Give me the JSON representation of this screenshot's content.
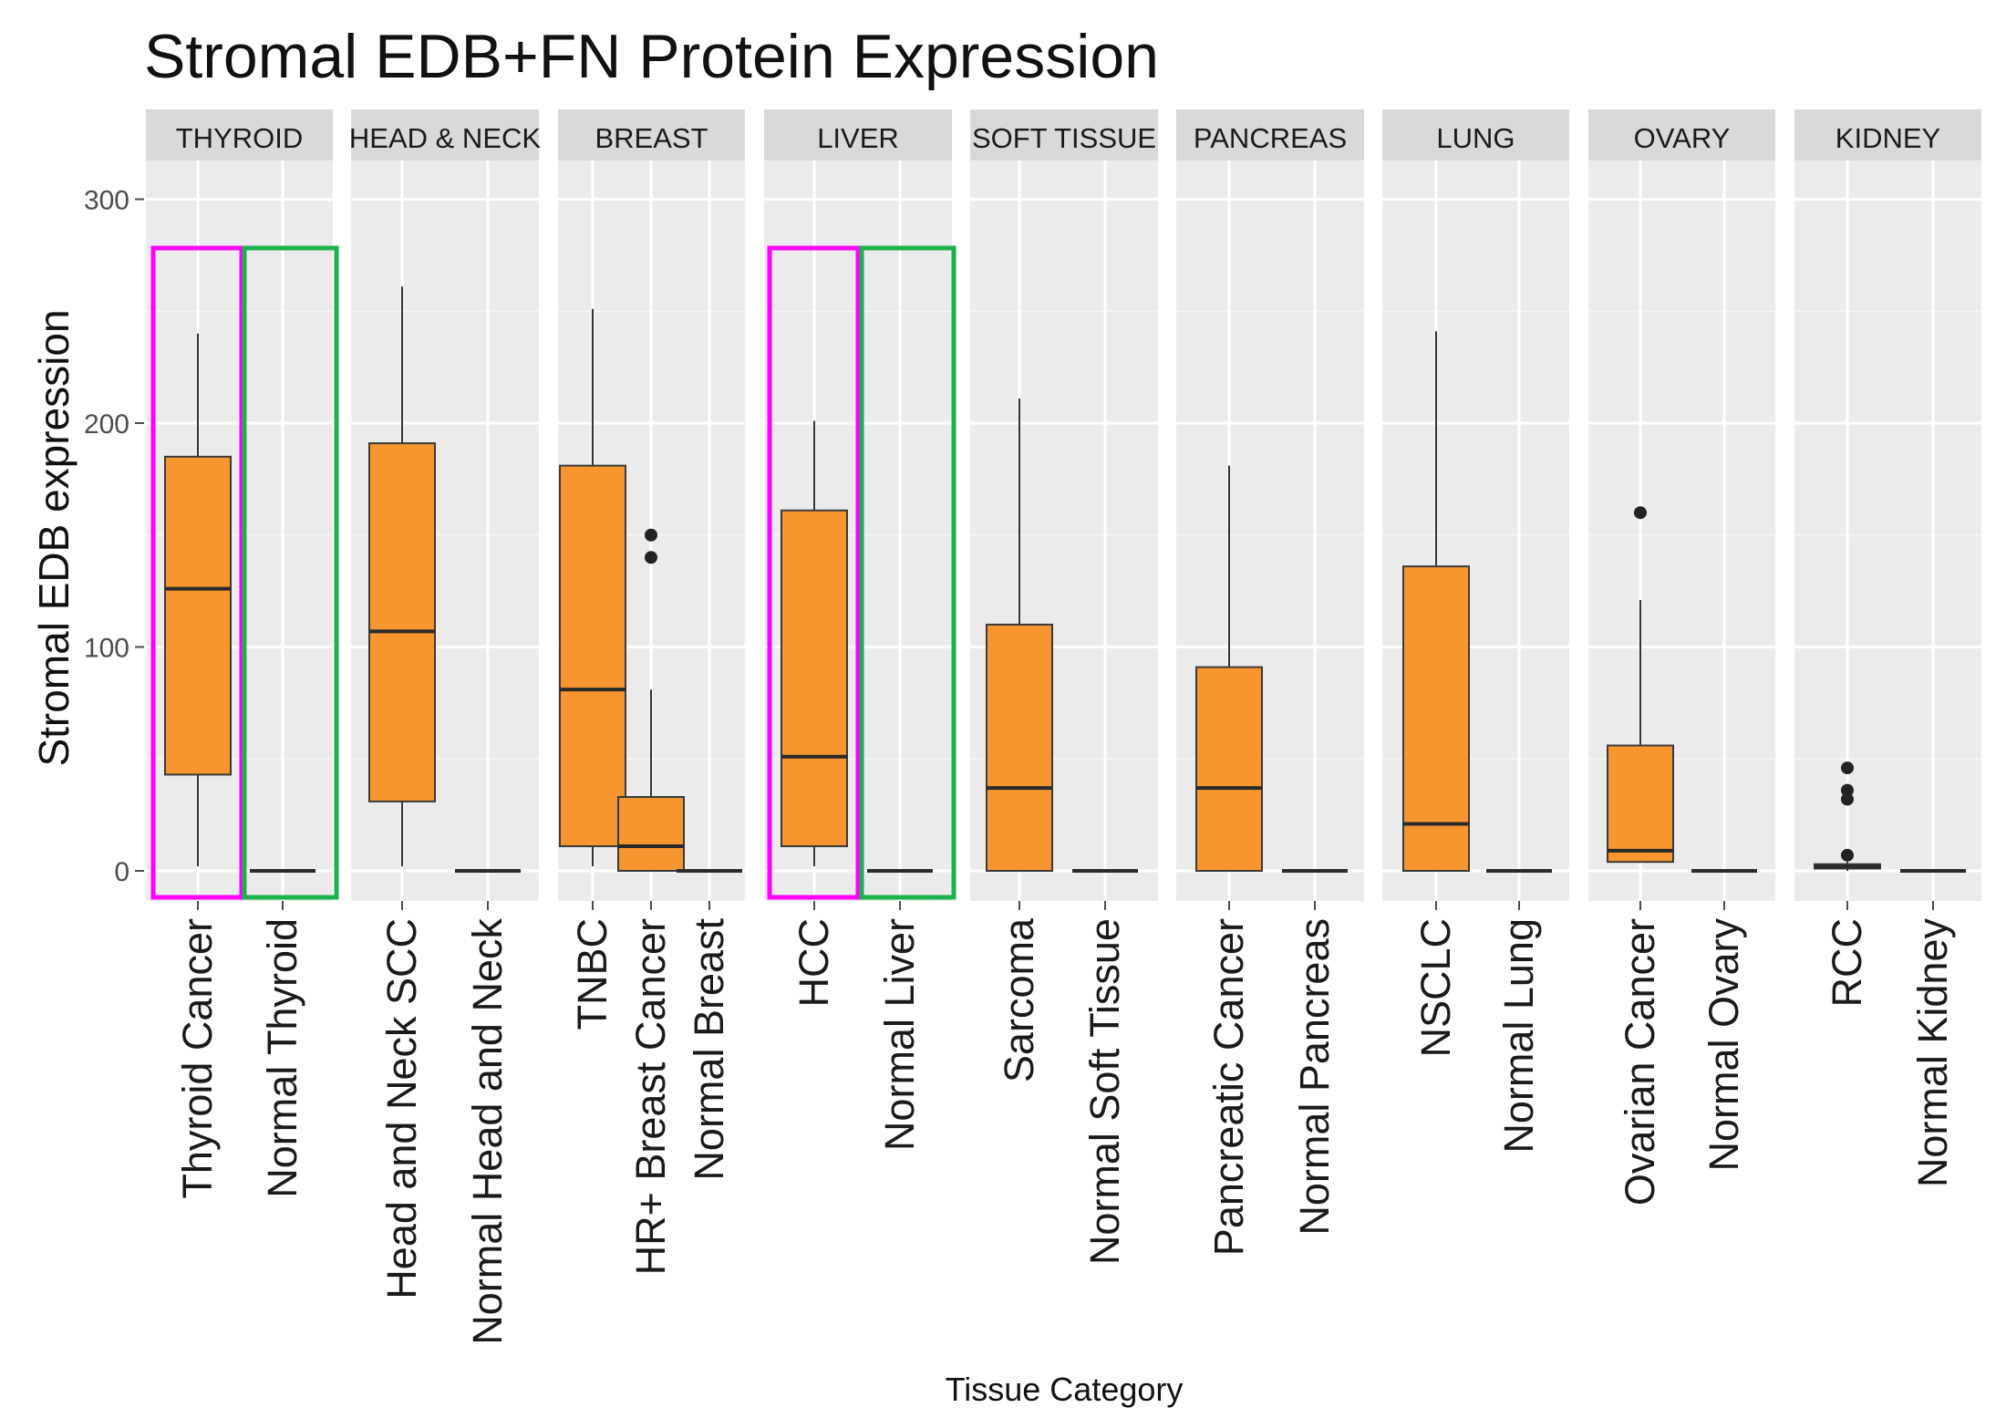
{
  "chart_data": {
    "type": "box",
    "title": "Stromal EDB+FN Protein Expression",
    "xlabel": "Tissue Category",
    "ylabel": "Stromal EDB expression",
    "ylim": [
      -12,
      310
    ],
    "yticks": [
      0,
      100,
      200,
      300
    ],
    "grid": true,
    "box_color": "#f7962f",
    "panel_color": "#ebebeb",
    "strip_color": "#d9d9d9",
    "highlight_colors": {
      "cancer": "#ff00ff",
      "normal": "#1db14b"
    },
    "panels": [
      {
        "facet": "THYROID",
        "highlighted": true,
        "groups": [
          {
            "label": "Thyroid Cancer",
            "min": 2,
            "q1": 43,
            "median": 126,
            "q3": 185,
            "max": 240,
            "outliers": [],
            "highlight": "cancer"
          },
          {
            "label": "Normal Thyroid",
            "min": 0,
            "q1": 0,
            "median": 0,
            "q3": 0,
            "max": 0,
            "outliers": [],
            "highlight": "normal"
          }
        ]
      },
      {
        "facet": "HEAD & NECK",
        "groups": [
          {
            "label": "Head and Neck SCC",
            "min": 2,
            "q1": 31,
            "median": 107,
            "q3": 191,
            "max": 261,
            "outliers": []
          },
          {
            "label": "Normal Head and Neck",
            "min": 0,
            "q1": 0,
            "median": 0,
            "q3": 0,
            "max": 0,
            "outliers": []
          }
        ]
      },
      {
        "facet": "BREAST",
        "groups": [
          {
            "label": "TNBC",
            "min": 2,
            "q1": 11,
            "median": 81,
            "q3": 181,
            "max": 251,
            "outliers": []
          },
          {
            "label": "HR+ Breast Cancer",
            "min": 0,
            "q1": 0,
            "median": 11,
            "q3": 33,
            "max": 81,
            "outliers": [
              140,
              150
            ]
          },
          {
            "label": "Normal Breast",
            "min": 0,
            "q1": 0,
            "median": 0,
            "q3": 0,
            "max": 0,
            "outliers": []
          }
        ]
      },
      {
        "facet": "LIVER",
        "highlighted": true,
        "groups": [
          {
            "label": "HCC",
            "min": 2,
            "q1": 11,
            "median": 51,
            "q3": 161,
            "max": 201,
            "outliers": [],
            "highlight": "cancer"
          },
          {
            "label": "Normal Liver",
            "min": 0,
            "q1": 0,
            "median": 0,
            "q3": 0,
            "max": 0,
            "outliers": [],
            "highlight": "normal"
          }
        ]
      },
      {
        "facet": "SOFT TISSUE",
        "groups": [
          {
            "label": "Sarcoma",
            "min": 0,
            "q1": 0,
            "median": 37,
            "q3": 110,
            "max": 211,
            "outliers": []
          },
          {
            "label": "Normal Soft Tissue",
            "min": 0,
            "q1": 0,
            "median": 0,
            "q3": 0,
            "max": 0,
            "outliers": []
          }
        ]
      },
      {
        "facet": "PANCREAS",
        "groups": [
          {
            "label": "Pancreatic Cancer",
            "min": 0,
            "q1": 0,
            "median": 37,
            "q3": 91,
            "max": 181,
            "outliers": []
          },
          {
            "label": "Normal Pancreas",
            "min": 0,
            "q1": 0,
            "median": 0,
            "q3": 0,
            "max": 0,
            "outliers": []
          }
        ]
      },
      {
        "facet": "LUNG",
        "groups": [
          {
            "label": "NSCLC",
            "min": 0,
            "q1": 0,
            "median": 21,
            "q3": 136,
            "max": 241,
            "outliers": []
          },
          {
            "label": "Normal Lung",
            "min": 0,
            "q1": 0,
            "median": 0,
            "q3": 0,
            "max": 0,
            "outliers": []
          }
        ]
      },
      {
        "facet": "OVARY",
        "groups": [
          {
            "label": "Ovarian Cancer",
            "min": 4,
            "q1": 4,
            "median": 9,
            "q3": 56,
            "max": 121,
            "outliers": [
              160
            ]
          },
          {
            "label": "Normal Ovary",
            "min": 0,
            "q1": 0,
            "median": 0,
            "q3": 0,
            "max": 0,
            "outliers": []
          }
        ]
      },
      {
        "facet": "KIDNEY",
        "groups": [
          {
            "label": "RCC",
            "min": 0,
            "q1": 1,
            "median": 2,
            "q3": 3,
            "max": 4,
            "outliers": [
              7,
              32,
              36,
              46
            ]
          },
          {
            "label": "Normal Kidney",
            "min": 0,
            "q1": 0,
            "median": 0,
            "q3": 0,
            "max": 0,
            "outliers": []
          }
        ]
      }
    ]
  }
}
